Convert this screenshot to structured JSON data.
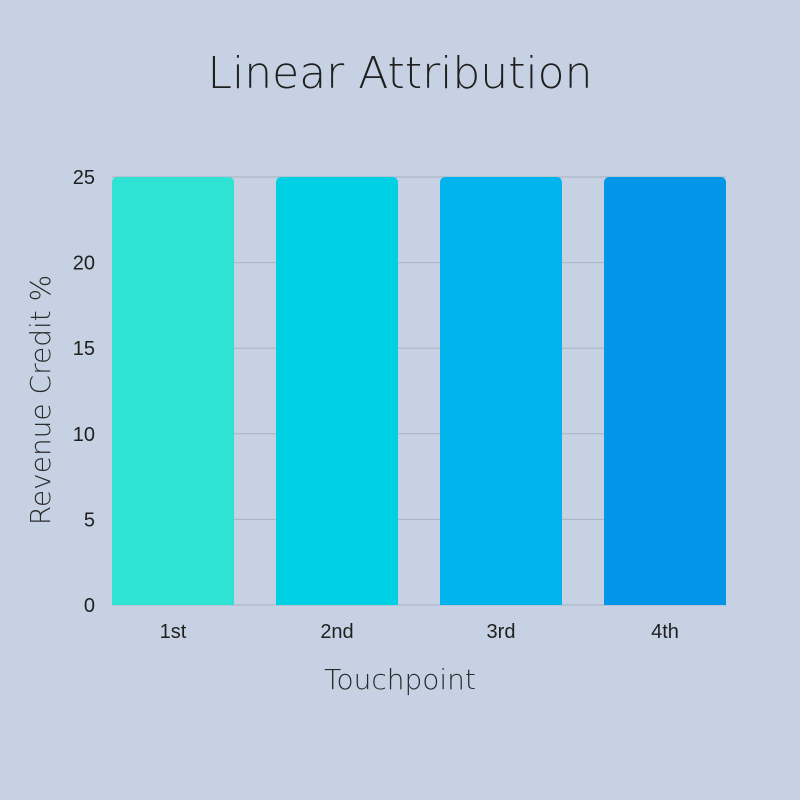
{
  "chart_data": {
    "type": "bar",
    "title": "Linear Attribution",
    "xlabel": "Touchpoint",
    "ylabel": "Revenue Credit %",
    "categories": [
      "1st",
      "2nd",
      "3rd",
      "4th"
    ],
    "values": [
      25,
      25,
      25,
      25
    ],
    "ylim": [
      0,
      25
    ],
    "yticks": [
      "0",
      "5",
      "10",
      "15",
      "20",
      "25"
    ],
    "grid": true,
    "legend": "none",
    "colors": [
      "#2ee3d4",
      "#00d0e3",
      "#00b5ee",
      "#0396e8"
    ]
  },
  "background_color": "#c6d2e3"
}
